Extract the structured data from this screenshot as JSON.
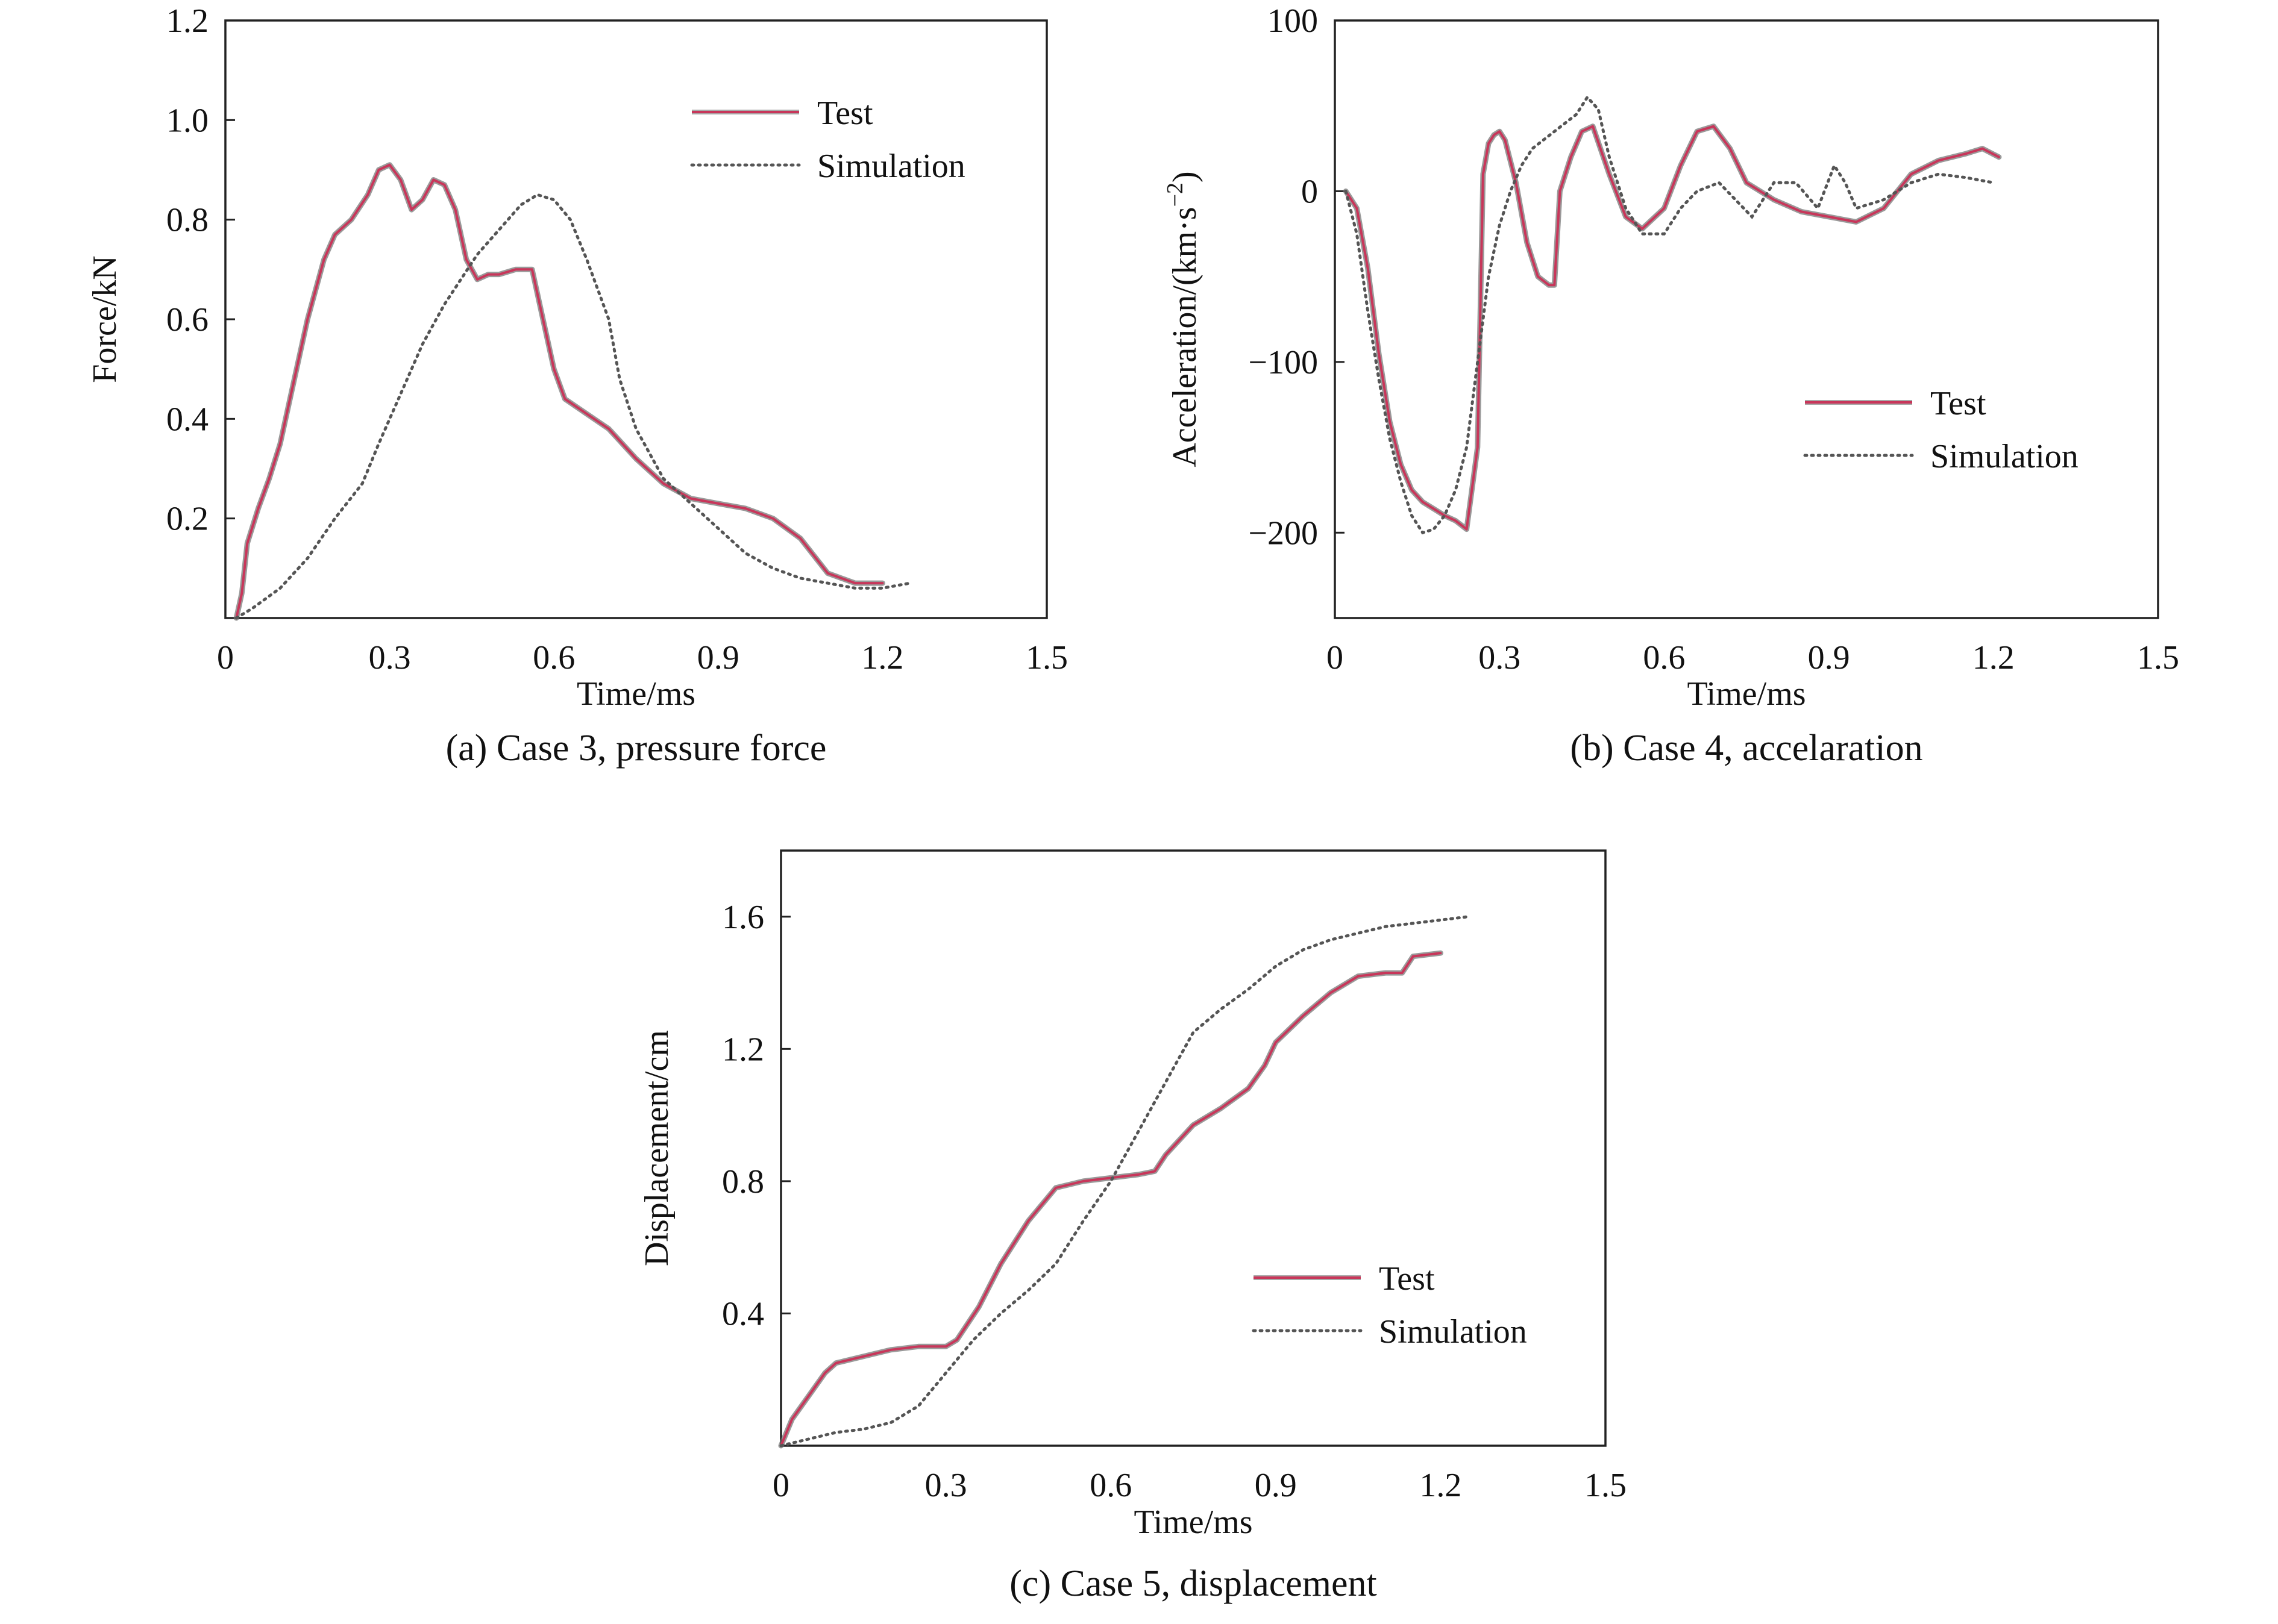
{
  "colors": {
    "test": "#c8365a",
    "test_shadow": "#6f6f6f",
    "simulation": "#555555",
    "axis": "#222222",
    "text": "#111111"
  },
  "chart_data": [
    {
      "type": "line",
      "caption": "(a) Case 3, pressure force",
      "xlabel": "Time/ms",
      "ylabel": "Force/kN",
      "xlim": [
        0,
        1.5
      ],
      "ylim": [
        0,
        1.2
      ],
      "xticks": [
        0,
        0.3,
        0.6,
        0.9,
        1.2,
        1.5
      ],
      "xtick_labels": [
        "0",
        "0.3",
        "0.6",
        "0.9",
        "1.2",
        "1.5"
      ],
      "yticks": [
        0.2,
        0.4,
        0.6,
        0.8,
        1.0,
        1.2
      ],
      "ytick_labels": [
        "0.2",
        "0.4",
        "0.6",
        "0.8",
        "1.0",
        "1.2"
      ],
      "grid": false,
      "legend": "top-right",
      "series": [
        {
          "name": "Test",
          "style": "solid",
          "x": [
            0.02,
            0.03,
            0.04,
            0.06,
            0.08,
            0.1,
            0.12,
            0.15,
            0.18,
            0.2,
            0.23,
            0.26,
            0.28,
            0.3,
            0.32,
            0.34,
            0.36,
            0.38,
            0.4,
            0.42,
            0.44,
            0.46,
            0.48,
            0.5,
            0.53,
            0.56,
            0.58,
            0.6,
            0.62,
            0.66,
            0.7,
            0.75,
            0.8,
            0.85,
            0.9,
            0.95,
            1.0,
            1.05,
            1.1,
            1.15,
            1.2
          ],
          "y": [
            0.0,
            0.05,
            0.15,
            0.22,
            0.28,
            0.35,
            0.45,
            0.6,
            0.72,
            0.77,
            0.8,
            0.85,
            0.9,
            0.91,
            0.88,
            0.82,
            0.84,
            0.88,
            0.87,
            0.82,
            0.72,
            0.68,
            0.69,
            0.69,
            0.7,
            0.7,
            0.6,
            0.5,
            0.44,
            0.41,
            0.38,
            0.32,
            0.27,
            0.24,
            0.23,
            0.22,
            0.2,
            0.16,
            0.09,
            0.07,
            0.07
          ]
        },
        {
          "name": "Simulation",
          "style": "dotted",
          "x": [
            0.02,
            0.05,
            0.1,
            0.15,
            0.2,
            0.25,
            0.28,
            0.32,
            0.36,
            0.4,
            0.43,
            0.46,
            0.5,
            0.54,
            0.57,
            0.6,
            0.63,
            0.66,
            0.7,
            0.72,
            0.75,
            0.8,
            0.85,
            0.9,
            0.95,
            1.0,
            1.05,
            1.1,
            1.15,
            1.2,
            1.25
          ],
          "y": [
            0.0,
            0.02,
            0.06,
            0.12,
            0.2,
            0.27,
            0.35,
            0.45,
            0.55,
            0.63,
            0.68,
            0.73,
            0.78,
            0.83,
            0.85,
            0.84,
            0.8,
            0.72,
            0.6,
            0.48,
            0.38,
            0.28,
            0.23,
            0.18,
            0.13,
            0.1,
            0.08,
            0.07,
            0.06,
            0.06,
            0.07
          ]
        }
      ]
    },
    {
      "type": "line",
      "caption": "(b) Case 4, accelaration",
      "xlabel": "Time/ms",
      "ylabel": "Acceleration/(km·s",
      "ylabel_sup": "−2",
      "ylabel_end": ")",
      "xlim": [
        0,
        1.5
      ],
      "ylim": [
        -250,
        100
      ],
      "xticks": [
        0,
        0.3,
        0.6,
        0.9,
        1.2,
        1.5
      ],
      "xtick_labels": [
        "0",
        "0.3",
        "0.6",
        "0.9",
        "1.2",
        "1.5"
      ],
      "yticks": [
        -200,
        -100,
        0,
        100
      ],
      "ytick_labels": [
        "−200",
        "−100",
        "0",
        "100"
      ],
      "grid": false,
      "legend": "center-right",
      "series": [
        {
          "name": "Test",
          "style": "solid",
          "x": [
            0.02,
            0.04,
            0.06,
            0.08,
            0.1,
            0.12,
            0.14,
            0.16,
            0.18,
            0.2,
            0.22,
            0.24,
            0.26,
            0.27,
            0.28,
            0.29,
            0.3,
            0.31,
            0.33,
            0.35,
            0.37,
            0.39,
            0.4,
            0.41,
            0.43,
            0.45,
            0.47,
            0.5,
            0.53,
            0.56,
            0.6,
            0.63,
            0.66,
            0.69,
            0.72,
            0.75,
            0.8,
            0.85,
            0.9,
            0.95,
            1.0,
            1.05,
            1.1,
            1.15,
            1.18,
            1.21
          ],
          "y": [
            0,
            -10,
            -45,
            -95,
            -135,
            -160,
            -175,
            -182,
            -186,
            -190,
            -193,
            -198,
            -150,
            10,
            28,
            33,
            35,
            30,
            5,
            -30,
            -50,
            -55,
            -55,
            0,
            20,
            35,
            38,
            10,
            -15,
            -22,
            -10,
            15,
            35,
            38,
            25,
            5,
            -5,
            -12,
            -15,
            -18,
            -10,
            10,
            18,
            22,
            25,
            20
          ]
        },
        {
          "name": "Simulation",
          "style": "dotted",
          "x": [
            0.02,
            0.04,
            0.06,
            0.08,
            0.1,
            0.12,
            0.14,
            0.16,
            0.18,
            0.2,
            0.22,
            0.24,
            0.26,
            0.28,
            0.3,
            0.32,
            0.34,
            0.36,
            0.38,
            0.4,
            0.42,
            0.44,
            0.46,
            0.48,
            0.5,
            0.53,
            0.56,
            0.6,
            0.63,
            0.66,
            0.7,
            0.73,
            0.76,
            0.8,
            0.84,
            0.88,
            0.91,
            0.93,
            0.95,
            1.0,
            1.05,
            1.1,
            1.15,
            1.2
          ],
          "y": [
            0,
            -25,
            -70,
            -110,
            -145,
            -170,
            -190,
            -200,
            -198,
            -190,
            -175,
            -150,
            -100,
            -50,
            -20,
            0,
            15,
            25,
            30,
            35,
            40,
            45,
            55,
            48,
            20,
            -10,
            -25,
            -25,
            -10,
            0,
            5,
            -5,
            -15,
            5,
            5,
            -10,
            15,
            5,
            -10,
            -5,
            5,
            10,
            8,
            5
          ]
        }
      ]
    },
    {
      "type": "line",
      "caption": "(c) Case 5, displacement",
      "xlabel": "Time/ms",
      "ylabel": "Displacement/cm",
      "xlim": [
        0,
        1.5
      ],
      "ylim": [
        0,
        1.8
      ],
      "xticks": [
        0,
        0.3,
        0.6,
        0.9,
        1.2,
        1.5
      ],
      "xtick_labels": [
        "0",
        "0.3",
        "0.6",
        "0.9",
        "1.2",
        "1.5"
      ],
      "yticks": [
        0.4,
        0.8,
        1.2,
        1.6
      ],
      "ytick_labels": [
        "0.4",
        "0.8",
        "1.2",
        "1.6"
      ],
      "grid": false,
      "legend": "center-right",
      "series": [
        {
          "name": "Test",
          "style": "solid",
          "x": [
            0.0,
            0.02,
            0.05,
            0.08,
            0.1,
            0.15,
            0.2,
            0.25,
            0.3,
            0.32,
            0.36,
            0.4,
            0.45,
            0.5,
            0.55,
            0.6,
            0.65,
            0.68,
            0.7,
            0.75,
            0.8,
            0.85,
            0.88,
            0.9,
            0.95,
            1.0,
            1.05,
            1.1,
            1.13,
            1.15,
            1.2
          ],
          "y": [
            0.0,
            0.08,
            0.15,
            0.22,
            0.25,
            0.27,
            0.29,
            0.3,
            0.3,
            0.32,
            0.42,
            0.55,
            0.68,
            0.78,
            0.8,
            0.81,
            0.82,
            0.83,
            0.88,
            0.97,
            1.02,
            1.08,
            1.15,
            1.22,
            1.3,
            1.37,
            1.42,
            1.43,
            1.43,
            1.48,
            1.49
          ]
        },
        {
          "name": "Simulation",
          "style": "dotted",
          "x": [
            0.0,
            0.05,
            0.1,
            0.15,
            0.2,
            0.25,
            0.3,
            0.35,
            0.4,
            0.45,
            0.5,
            0.55,
            0.6,
            0.65,
            0.7,
            0.75,
            0.8,
            0.85,
            0.9,
            0.95,
            1.0,
            1.05,
            1.1,
            1.15,
            1.2,
            1.25
          ],
          "y": [
            0.0,
            0.02,
            0.04,
            0.05,
            0.07,
            0.12,
            0.22,
            0.32,
            0.4,
            0.47,
            0.55,
            0.68,
            0.8,
            0.95,
            1.1,
            1.25,
            1.32,
            1.38,
            1.45,
            1.5,
            1.53,
            1.55,
            1.57,
            1.58,
            1.59,
            1.6
          ]
        }
      ]
    }
  ]
}
